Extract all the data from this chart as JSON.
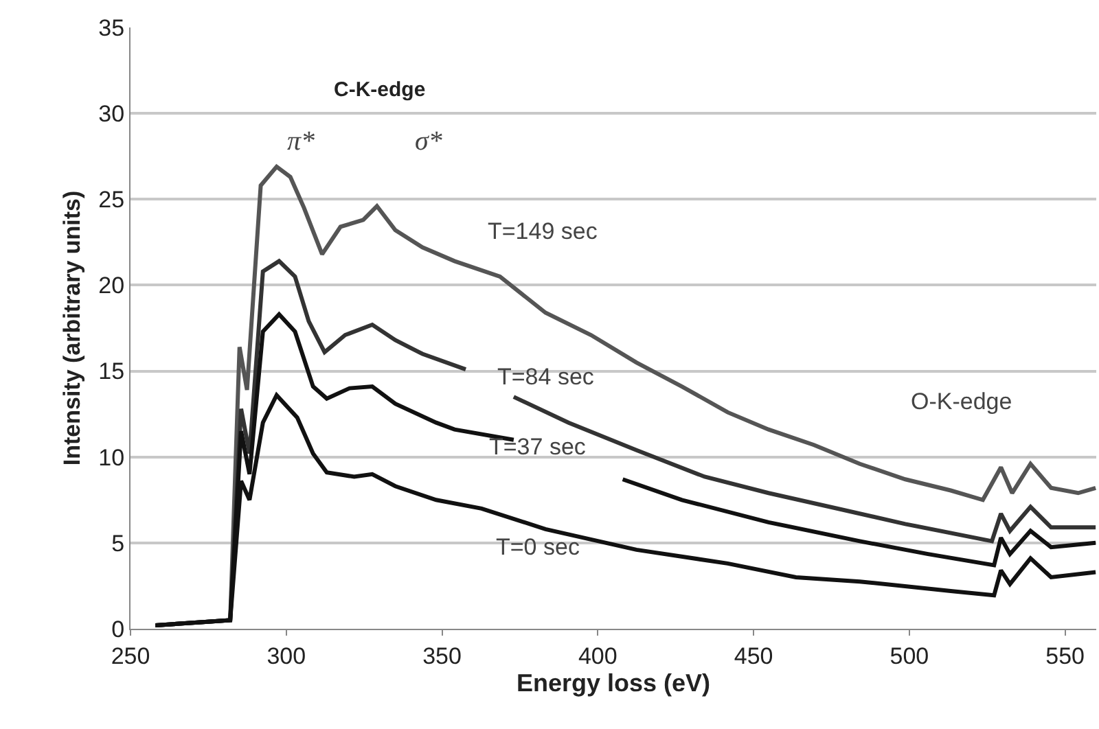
{
  "chart_data": {
    "type": "line",
    "xlabel": "Energy loss (eV)",
    "ylabel": "Intensity (arbitrary units)",
    "xlim": [
      250,
      560
    ],
    "xticks": [
      250,
      300,
      350,
      400,
      450,
      500,
      550
    ],
    "ylim": [
      0,
      35
    ],
    "yticks": [
      0,
      5,
      10,
      15,
      20,
      25,
      30,
      35
    ],
    "grid": "y",
    "marker": "none",
    "line_style": "solid",
    "series": [
      {
        "color": "#555555",
        "x": [
          258,
          274,
          282,
          285,
          287.4,
          291.8,
          296.9,
          301.3,
          305.7,
          311.5,
          317.4,
          324.7,
          329.1,
          335,
          343.7,
          354,
          368.6,
          383.2,
          397.8,
          412.4,
          427,
          441.7,
          454.8,
          469.4,
          484.1,
          498.7,
          513.3,
          523.6,
          529.4,
          533,
          538.9,
          545.5,
          554.2,
          559.8
        ],
        "values": [
          0.2,
          0.4,
          0.5,
          16.4,
          13.9,
          25.8,
          26.9,
          26.3,
          24.5,
          21.8,
          23.4,
          23.8,
          24.6,
          23.2,
          22.2,
          21.4,
          20.5,
          18.4,
          17.1,
          15.5,
          14.1,
          12.6,
          11.6,
          10.7,
          9.6,
          8.7,
          8.05,
          7.5,
          9.4,
          7.9,
          9.6,
          8.2,
          7.9,
          8.2
        ]
      },
      {
        "color": "#333333",
        "x": [
          258,
          274,
          282,
          285.5,
          288.2,
          292.5,
          297.7,
          302.8,
          307.2,
          312.3,
          318.9,
          327.6,
          335,
          343.7,
          357.6,
          365,
          373,
          390.6,
          412.4,
          434.3,
          454.8,
          476.8,
          498.7,
          526.5,
          529.4,
          532.3,
          538.9,
          545.5,
          559.8
        ],
        "values": [
          0.2,
          0.4,
          0.5,
          12.8,
          10.2,
          20.8,
          21.4,
          20.5,
          17.9,
          16.1,
          17.1,
          17.7,
          16.8,
          16.0,
          15.1,
          null,
          13.5,
          12.0,
          10.4,
          8.85,
          7.9,
          7.0,
          6.1,
          5.1,
          6.7,
          5.7,
          7.1,
          5.9,
          5.9
        ]
      },
      {
        "color": "#111111",
        "x": [
          258,
          274,
          282,
          285.5,
          288.2,
          292.5,
          297.7,
          302.8,
          308.6,
          313,
          320.3,
          327.6,
          335,
          348.1,
          354,
          373,
          390,
          408,
          427,
          454.8,
          484.1,
          506,
          527.2,
          529.4,
          532.3,
          538.9,
          545.5,
          559.8
        ],
        "values": [
          0.2,
          0.4,
          0.5,
          11.5,
          9.0,
          17.3,
          18.3,
          17.3,
          14.1,
          13.4,
          14.0,
          14.1,
          13.1,
          12.0,
          11.6,
          11.0,
          null,
          8.7,
          7.5,
          6.2,
          5.1,
          4.35,
          3.7,
          5.3,
          4.35,
          5.7,
          4.75,
          5.0
        ]
      },
      {
        "color": "#111111",
        "x": [
          258,
          274,
          282,
          285.5,
          288.2,
          292.5,
          296.9,
          303.5,
          308.6,
          313,
          321.8,
          327.6,
          335,
          348.1,
          362.7,
          383.2,
          412.4,
          441.7,
          463.6,
          484.1,
          513.3,
          527.2,
          529.4,
          532.3,
          538.9,
          545.5,
          559.8
        ],
        "values": [
          0.2,
          0.4,
          0.5,
          8.6,
          7.5,
          12.0,
          13.6,
          12.3,
          10.2,
          9.1,
          8.85,
          9.0,
          8.3,
          7.5,
          7.0,
          5.8,
          4.6,
          3.8,
          3.0,
          2.75,
          2.2,
          1.95,
          3.4,
          2.6,
          4.1,
          3.0,
          3.3
        ]
      }
    ],
    "annotations": [
      "C-K-edge",
      "π*",
      "σ*",
      "T=149 sec",
      "T=84 sec",
      "T=37 sec",
      "T=0 sec",
      "O-K-edge"
    ]
  }
}
